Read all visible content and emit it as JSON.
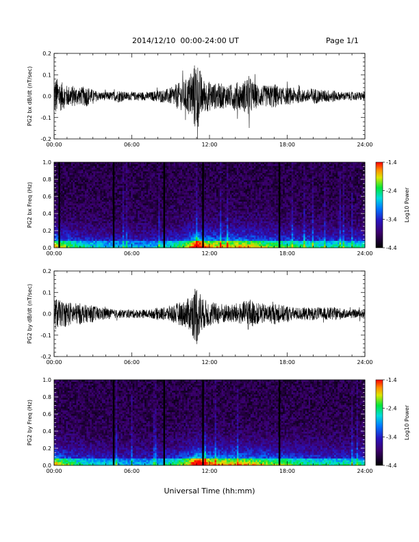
{
  "header": {
    "title": "2014/12/10  00:00-24:00 UT",
    "page": "Page 1/1"
  },
  "chart_data": [
    {
      "type": "line",
      "ylabel": "PG2 bx dB/dt (nT/sec)",
      "xlabel": "",
      "xlim": [
        "00:00",
        "24:00"
      ],
      "x_tick_labels": [
        "00:00",
        "06:00",
        "12:00",
        "18:00",
        "24:00"
      ],
      "ylim": [
        -0.2,
        0.2
      ],
      "y_tick_labels": [
        "-0.2",
        "-0.1",
        "0.0",
        "0.1",
        "0.2"
      ],
      "series": [
        {
          "x_hours": [
            0,
            0.5,
            1,
            1.5,
            2,
            2.5,
            3,
            3.5,
            4,
            4.5,
            5,
            5.5,
            6,
            6.5,
            7,
            7.5,
            8,
            8.5,
            9,
            9.5,
            10,
            10.5,
            11,
            11.5,
            12,
            12.5,
            13,
            13.5,
            14,
            14.5,
            15,
            15.5,
            16,
            16.5,
            17,
            17.5,
            18,
            18.5,
            19,
            19.5,
            20,
            20.5,
            21,
            21.5,
            22,
            22.5,
            23,
            23.5,
            24
          ],
          "amplitude": [
            0.1,
            0.07,
            0.05,
            0.05,
            0.04,
            0.05,
            0.03,
            0.02,
            0.02,
            0.02,
            0.03,
            0.02,
            0.02,
            0.02,
            0.02,
            0.02,
            0.03,
            0.03,
            0.04,
            0.06,
            0.07,
            0.1,
            0.18,
            0.08,
            0.07,
            0.06,
            0.06,
            0.05,
            0.07,
            0.06,
            0.1,
            0.06,
            0.05,
            0.05,
            0.06,
            0.04,
            0.04,
            0.04,
            0.03,
            0.03,
            0.04,
            0.03,
            0.03,
            0.03,
            0.02,
            0.02,
            0.02,
            0.02,
            0.02
          ]
        }
      ]
    },
    {
      "type": "heatmap",
      "ylabel": "PG2 bx Freq (Hz)",
      "xlabel": "",
      "xlim": [
        "00:00",
        "24:00"
      ],
      "x_tick_labels": [
        "00:00",
        "06:00",
        "12:00",
        "18:00",
        "24:00"
      ],
      "ylim": [
        0.0,
        1.0
      ],
      "y_tick_labels": [
        "0.0",
        "0.2",
        "0.4",
        "0.6",
        "0.8",
        "1.0"
      ],
      "colorbar": {
        "label": "Log10 Power",
        "range": [
          -4.4,
          -1.4
        ],
        "tick_labels": [
          "-1.4",
          "-2.4",
          "-3.4",
          "-4.4"
        ]
      },
      "gaps_hours": [
        0.4,
        4.6,
        8.5,
        11.5,
        17.4
      ],
      "activity_hours": [
        0,
        0.5,
        1,
        1.5,
        2,
        2.5,
        3,
        3.5,
        4,
        4.5,
        5,
        5.5,
        6,
        6.5,
        7,
        7.5,
        8,
        8.5,
        9,
        9.5,
        10,
        10.5,
        11,
        11.5,
        12,
        12.5,
        13,
        13.5,
        14,
        14.5,
        15,
        15.5,
        16,
        16.5,
        17,
        17.5,
        18,
        18.5,
        19,
        19.5,
        20,
        20.5,
        21,
        21.5,
        22,
        22.5,
        23,
        23.5,
        24
      ],
      "activity": [
        0.6,
        0.55,
        0.5,
        0.45,
        0.42,
        0.4,
        0.38,
        0.36,
        0.35,
        0.35,
        0.35,
        0.34,
        0.33,
        0.33,
        0.33,
        0.34,
        0.35,
        0.38,
        0.42,
        0.45,
        0.5,
        0.6,
        0.85,
        0.7,
        0.62,
        0.6,
        0.6,
        0.58,
        0.62,
        0.6,
        0.6,
        0.56,
        0.55,
        0.52,
        0.5,
        0.48,
        0.46,
        0.45,
        0.44,
        0.43,
        0.42,
        0.42,
        0.41,
        0.4,
        0.4,
        0.4,
        0.4,
        0.4,
        0.4
      ]
    },
    {
      "type": "line",
      "ylabel": "PG2 by dB/dt (nT/sec)",
      "xlabel": "",
      "xlim": [
        "00:00",
        "24:00"
      ],
      "x_tick_labels": [
        "00:00",
        "06:00",
        "12:00",
        "18:00",
        "24:00"
      ],
      "ylim": [
        -0.2,
        0.2
      ],
      "y_tick_labels": [
        "-0.2",
        "-0.1",
        "0.0",
        "0.1",
        "0.2"
      ],
      "series": [
        {
          "x_hours": [
            0,
            0.5,
            1,
            1.5,
            2,
            2.5,
            3,
            3.5,
            4,
            4.5,
            5,
            5.5,
            6,
            6.5,
            7,
            7.5,
            8,
            8.5,
            9,
            9.5,
            10,
            10.5,
            11,
            11.5,
            12,
            12.5,
            13,
            13.5,
            14,
            14.5,
            15,
            15.5,
            16,
            16.5,
            17,
            17.5,
            18,
            18.5,
            19,
            19.5,
            20,
            20.5,
            21,
            21.5,
            22,
            22.5,
            23,
            23.5,
            24
          ],
          "amplitude": [
            0.08,
            0.06,
            0.06,
            0.05,
            0.05,
            0.04,
            0.04,
            0.03,
            0.03,
            0.02,
            0.02,
            0.02,
            0.02,
            0.02,
            0.02,
            0.02,
            0.03,
            0.03,
            0.04,
            0.05,
            0.06,
            0.08,
            0.15,
            0.07,
            0.06,
            0.05,
            0.05,
            0.04,
            0.05,
            0.05,
            0.08,
            0.05,
            0.05,
            0.04,
            0.05,
            0.04,
            0.04,
            0.03,
            0.03,
            0.03,
            0.03,
            0.03,
            0.03,
            0.03,
            0.03,
            0.02,
            0.02,
            0.02,
            0.02
          ]
        }
      ]
    },
    {
      "type": "heatmap",
      "ylabel": "PG2 by Freq (Hz)",
      "xlabel": "Universal Time (hh:mm)",
      "xlim": [
        "00:00",
        "24:00"
      ],
      "x_tick_labels": [
        "00:00",
        "06:00",
        "12:00",
        "18:00",
        "24:00"
      ],
      "ylim": [
        0.0,
        1.0
      ],
      "y_tick_labels": [
        "0.0",
        "0.2",
        "0.4",
        "0.6",
        "0.8",
        "1.0"
      ],
      "colorbar": {
        "label": "Log10 Power",
        "range": [
          -4.4,
          -1.4
        ],
        "tick_labels": [
          "-1.4",
          "-2.4",
          "-3.4",
          "-4.4"
        ]
      },
      "gaps_hours": [
        4.6,
        8.5,
        11.5,
        17.4
      ],
      "activity_hours": [
        0,
        0.5,
        1,
        1.5,
        2,
        2.5,
        3,
        3.5,
        4,
        4.5,
        5,
        5.5,
        6,
        6.5,
        7,
        7.5,
        8,
        8.5,
        9,
        9.5,
        10,
        10.5,
        11,
        11.5,
        12,
        12.5,
        13,
        13.5,
        14,
        14.5,
        15,
        15.5,
        16,
        16.5,
        17,
        17.5,
        18,
        18.5,
        19,
        19.5,
        20,
        20.5,
        21,
        21.5,
        22,
        22.5,
        23,
        23.5,
        24
      ],
      "activity": [
        0.62,
        0.56,
        0.5,
        0.45,
        0.42,
        0.4,
        0.38,
        0.36,
        0.35,
        0.35,
        0.34,
        0.33,
        0.33,
        0.33,
        0.33,
        0.34,
        0.35,
        0.38,
        0.42,
        0.46,
        0.52,
        0.62,
        0.85,
        0.72,
        0.65,
        0.62,
        0.62,
        0.6,
        0.62,
        0.6,
        0.6,
        0.58,
        0.56,
        0.54,
        0.52,
        0.5,
        0.48,
        0.46,
        0.45,
        0.44,
        0.43,
        0.42,
        0.42,
        0.41,
        0.41,
        0.4,
        0.4,
        0.4,
        0.4
      ]
    }
  ]
}
